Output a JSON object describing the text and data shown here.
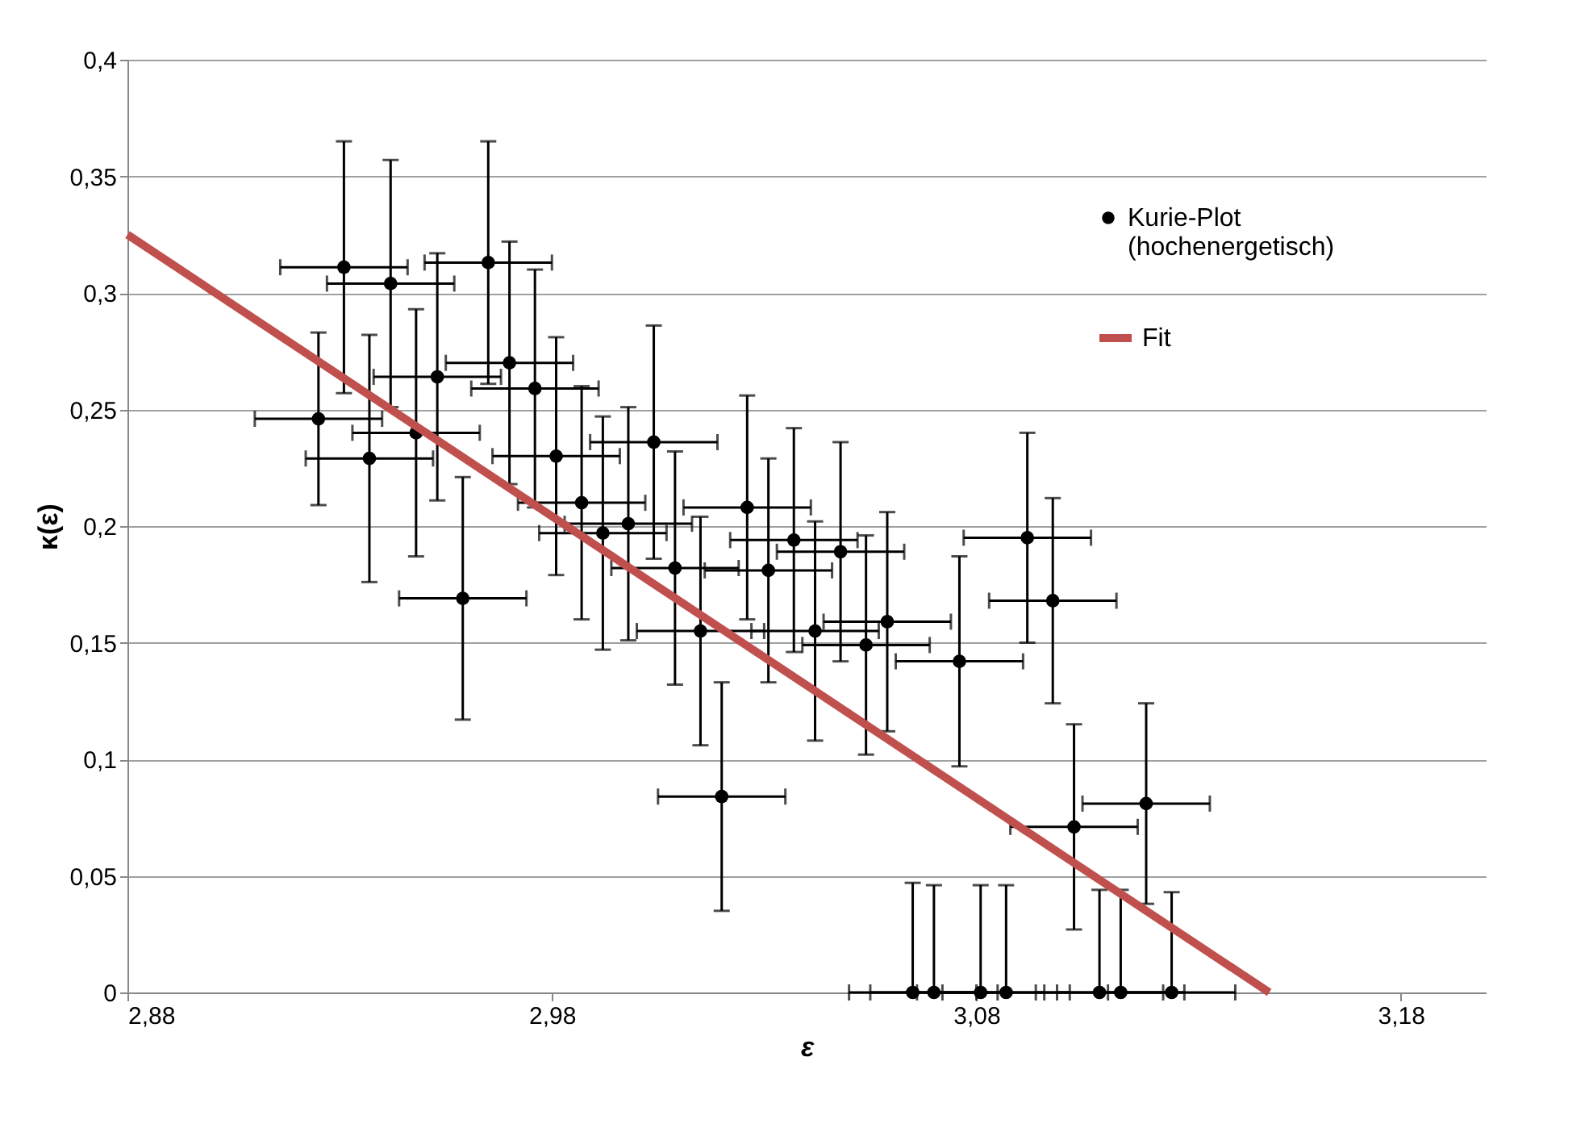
{
  "chart_data": {
    "type": "scatter",
    "xlabel": "ε",
    "ylabel": "κ(ε)",
    "xlim": [
      2.88,
      3.2
    ],
    "ylim": [
      0,
      0.4
    ],
    "xticks": [
      {
        "value": 2.88,
        "label": "2,88"
      },
      {
        "value": 2.98,
        "label": "2,98"
      },
      {
        "value": 3.08,
        "label": "3,08"
      },
      {
        "value": 3.18,
        "label": "3,18"
      }
    ],
    "yticks": [
      0,
      {
        "value": 0.05,
        "label": "0,05"
      },
      {
        "value": 0.1,
        "label": "0,1"
      },
      {
        "value": 0.15,
        "label": "0,15"
      },
      {
        "value": 0.2,
        "label": "0,2"
      },
      {
        "value": 0.25,
        "label": "0,25"
      },
      {
        "value": 0.3,
        "label": "0,3"
      },
      {
        "value": 0.35,
        "label": "0,35"
      },
      {
        "value": 0.4,
        "label": "0,4"
      }
    ],
    "grid": "y",
    "legend": "top right",
    "series": [
      {
        "name": "Kurie-Plot (hochenergetisch)",
        "color": "#000000",
        "marker": "circle",
        "x": [
          2.925,
          2.931,
          2.937,
          2.942,
          2.948,
          2.953,
          2.959,
          2.965,
          2.97,
          2.976,
          2.981,
          2.987,
          2.992,
          2.998,
          3.004,
          3.009,
          3.015,
          3.02,
          3.026,
          3.031,
          3.037,
          3.042,
          3.048,
          3.054,
          3.059,
          3.065,
          3.07,
          3.076,
          3.081,
          3.087,
          3.092,
          3.098,
          3.103,
          3.109,
          3.114,
          3.12,
          3.126
        ],
        "values": [
          0.246,
          0.311,
          0.229,
          0.304,
          0.24,
          0.264,
          0.169,
          0.313,
          0.27,
          0.259,
          0.23,
          0.21,
          0.197,
          0.201,
          0.236,
          0.182,
          0.155,
          0.084,
          0.208,
          0.181,
          0.194,
          0.155,
          0.189,
          0.149,
          0.159,
          0,
          0,
          0.142,
          0,
          0,
          0.195,
          0.168,
          0.071,
          0,
          0,
          0.081,
          0
        ],
        "errors": [
          0.037,
          0.054,
          0.053,
          0.053,
          0.053,
          0.053,
          0.052,
          0.052,
          0.052,
          0.051,
          0.051,
          0.05,
          0.05,
          0.05,
          0.05,
          0.05,
          0.049,
          0.049,
          0.048,
          0.048,
          0.048,
          0.047,
          0.047,
          0.047,
          0.047,
          [
            0,
            0.047
          ],
          [
            0,
            0.046
          ],
          0.045,
          [
            0,
            0.046
          ],
          [
            0,
            0.046
          ],
          0.045,
          0.044,
          0.044,
          [
            0,
            0.044
          ],
          [
            0,
            0.044
          ],
          0.043,
          [
            0,
            0.043
          ]
        ],
        "xerrors": [
          0.015,
          0.015,
          0.015,
          0.015,
          0.015,
          0.015,
          0.015,
          0.015,
          0.015,
          0.015,
          0.015,
          0.015,
          0.015,
          0.015,
          0.015,
          0.015,
          0.015,
          0.015,
          0.015,
          0.015,
          0.015,
          0.015,
          0.015,
          0.015,
          0.015,
          0.015,
          0.015,
          0.015,
          0.015,
          0.015,
          0.015,
          0.015,
          0.015,
          0.015,
          0.015,
          0.015,
          0.015
        ]
      },
      {
        "name": "Fit",
        "type": "line",
        "color": "#c0504d",
        "line_style": "solid",
        "marker": "none",
        "x": [
          2.88,
          3.149
        ],
        "values": [
          0.325,
          0
        ]
      }
    ]
  }
}
